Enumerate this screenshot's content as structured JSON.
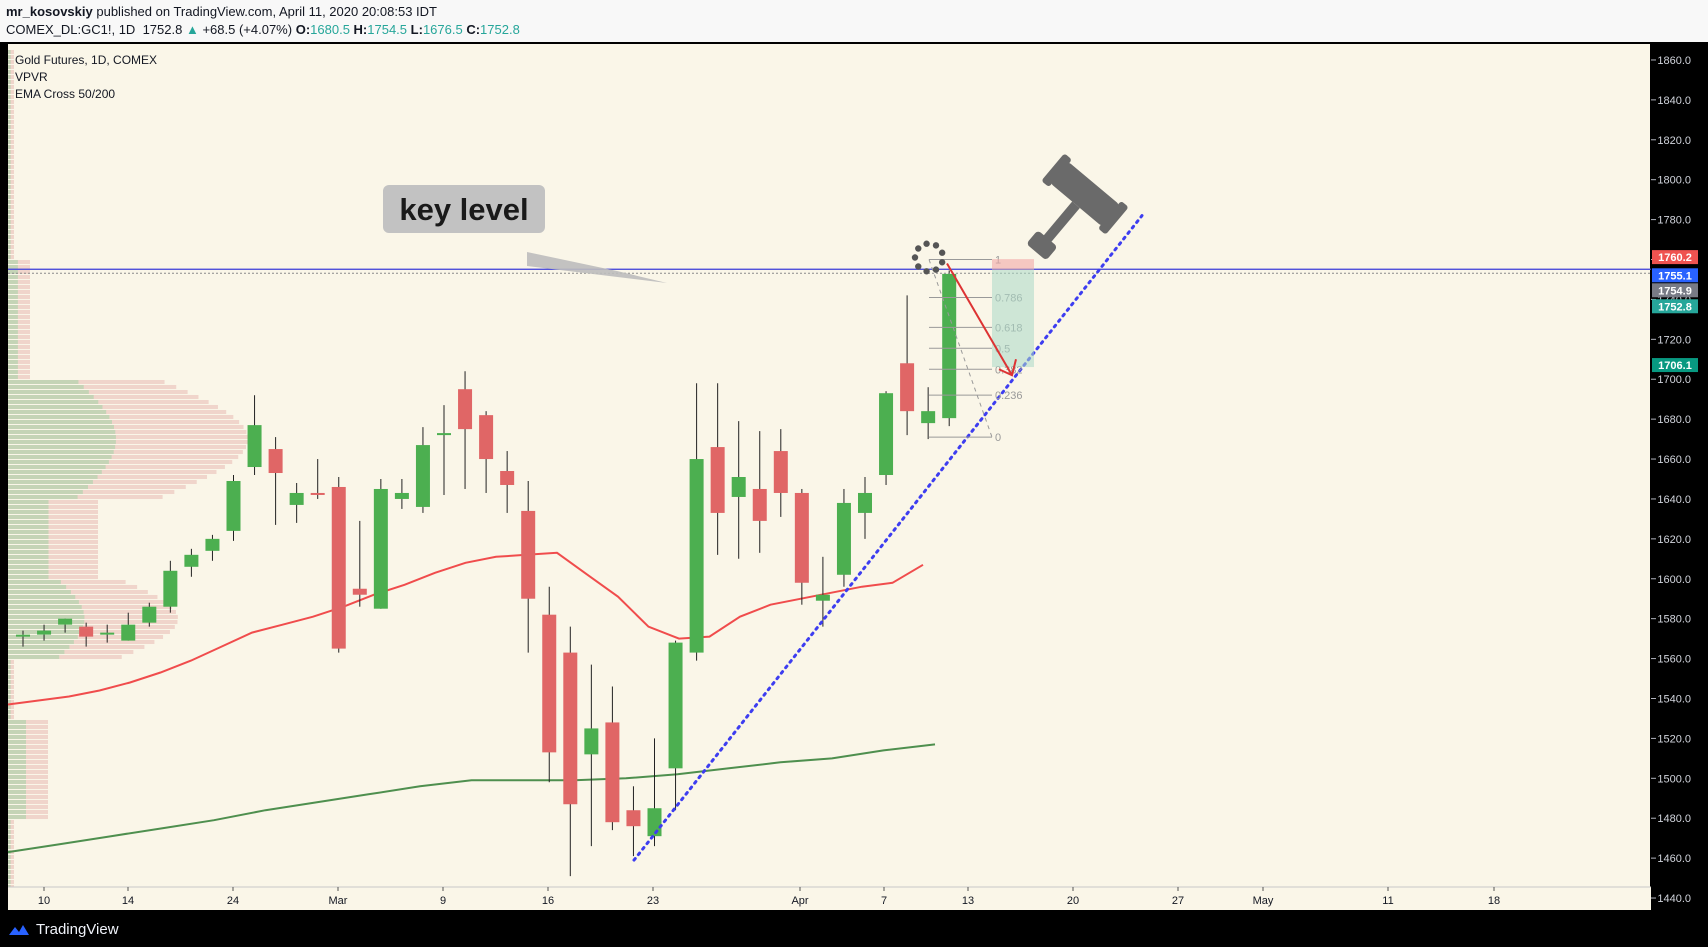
{
  "header": {
    "author": "mr_kosovskiy",
    "published_text": "published on TradingView.com, April 11, 2020 20:08:53 IDT",
    "symbol": "COMEX_DL:GC1!, 1D",
    "last": "1752.8",
    "change": "+68.5 (+4.07%)",
    "ohlc": [
      {
        "label": "O:",
        "value": "1680.5"
      },
      {
        "label": "H:",
        "value": "1754.5"
      },
      {
        "label": "L:",
        "value": "1676.5"
      },
      {
        "label": "C:",
        "value": "1752.8"
      }
    ]
  },
  "legend": {
    "title": "Gold Futures, 1D, COMEX",
    "indicator1": "VPVR",
    "indicator2": "EMA Cross 50/200"
  },
  "annotation": {
    "key_level": "key level"
  },
  "fib_levels": [
    "1",
    "0.786",
    "0.618",
    "0.5",
    "0.382",
    "0.236",
    "0"
  ],
  "price_tags": [
    {
      "value": "1760.2",
      "color": "#ef5350"
    },
    {
      "value": "1755.1",
      "color": "#2962ff"
    },
    {
      "value": "1754.9",
      "color": "#787b86"
    },
    {
      "value": "1752.8",
      "color": "#26a69a"
    },
    {
      "value": "1706.1",
      "color": "#089981"
    }
  ],
  "footer": {
    "brand": "TradingView"
  },
  "colors": {
    "up": "#4caf50",
    "down": "#e06666",
    "background": "#faf6e8",
    "ema50": "#f04c4c",
    "ema200": "#4e8f4e",
    "trendline": "#3d3df0",
    "key_level_line": "#3a3ad8"
  },
  "chart_data": {
    "type": "candlestick",
    "title": "Gold Futures, 1D, COMEX",
    "y_ticks": [
      1440,
      1460,
      1480,
      1500,
      1520,
      1540,
      1560,
      1580,
      1600,
      1620,
      1640,
      1660,
      1680,
      1700,
      1720,
      1740,
      1760,
      1780,
      1800,
      1820,
      1840,
      1860
    ],
    "ylim": [
      1434,
      1868
    ],
    "x_tick_labels": [
      "10",
      "14",
      "24",
      "Mar",
      "9",
      "16",
      "23",
      "Apr",
      "7",
      "13",
      "20",
      "27",
      "May",
      "11",
      "18"
    ],
    "key_level": 1755.1,
    "candles": [
      {
        "o": 1572,
        "h": 1574,
        "l": 1566,
        "c": 1572
      },
      {
        "o": 1572,
        "h": 1577,
        "l": 1569,
        "c": 1574
      },
      {
        "o": 1577,
        "h": 1580,
        "l": 1573,
        "c": 1580
      },
      {
        "o": 1576,
        "h": 1578,
        "l": 1566,
        "c": 1571
      },
      {
        "o": 1572,
        "h": 1577,
        "l": 1568,
        "c": 1573
      },
      {
        "o": 1569,
        "h": 1583,
        "l": 1569,
        "c": 1577
      },
      {
        "o": 1578,
        "h": 1588,
        "l": 1576,
        "c": 1586
      },
      {
        "o": 1586,
        "h": 1609,
        "l": 1583,
        "c": 1604
      },
      {
        "o": 1606,
        "h": 1615,
        "l": 1601,
        "c": 1612
      },
      {
        "o": 1614,
        "h": 1622,
        "l": 1609,
        "c": 1620
      },
      {
        "o": 1624,
        "h": 1652,
        "l": 1619,
        "c": 1649
      },
      {
        "o": 1656,
        "h": 1692,
        "l": 1652,
        "c": 1677
      },
      {
        "o": 1665,
        "h": 1671,
        "l": 1627,
        "c": 1653
      },
      {
        "o": 1637,
        "h": 1648,
        "l": 1628,
        "c": 1643
      },
      {
        "o": 1643,
        "h": 1660,
        "l": 1640,
        "c": 1642
      },
      {
        "o": 1646,
        "h": 1651,
        "l": 1563,
        "c": 1565
      },
      {
        "o": 1595,
        "h": 1629,
        "l": 1586,
        "c": 1592
      },
      {
        "o": 1585,
        "h": 1650,
        "l": 1585,
        "c": 1645
      },
      {
        "o": 1640,
        "h": 1650,
        "l": 1635,
        "c": 1643
      },
      {
        "o": 1636,
        "h": 1676,
        "l": 1633,
        "c": 1667
      },
      {
        "o": 1673,
        "h": 1687,
        "l": 1642,
        "c": 1673
      },
      {
        "o": 1695,
        "h": 1704,
        "l": 1645,
        "c": 1675
      },
      {
        "o": 1682,
        "h": 1684,
        "l": 1643,
        "c": 1660
      },
      {
        "o": 1654,
        "h": 1664,
        "l": 1633,
        "c": 1647
      },
      {
        "o": 1634,
        "h": 1649,
        "l": 1563,
        "c": 1590
      },
      {
        "o": 1582,
        "h": 1596,
        "l": 1498,
        "c": 1513
      },
      {
        "o": 1563,
        "h": 1576,
        "l": 1451,
        "c": 1487
      },
      {
        "o": 1512,
        "h": 1557,
        "l": 1466,
        "c": 1525
      },
      {
        "o": 1528,
        "h": 1546,
        "l": 1474,
        "c": 1478
      },
      {
        "o": 1484,
        "h": 1496,
        "l": 1461,
        "c": 1476
      },
      {
        "o": 1471,
        "h": 1520,
        "l": 1466,
        "c": 1485
      },
      {
        "o": 1505,
        "h": 1569,
        "l": 1484,
        "c": 1568
      },
      {
        "o": 1563,
        "h": 1698,
        "l": 1559,
        "c": 1660
      },
      {
        "o": 1666,
        "h": 1698,
        "l": 1612,
        "c": 1633
      },
      {
        "o": 1641,
        "h": 1679,
        "l": 1610,
        "c": 1651
      },
      {
        "o": 1645,
        "h": 1674,
        "l": 1613,
        "c": 1629
      },
      {
        "o": 1664,
        "h": 1675,
        "l": 1631,
        "c": 1643
      },
      {
        "o": 1643,
        "h": 1645,
        "l": 1587,
        "c": 1598
      },
      {
        "o": 1589,
        "h": 1611,
        "l": 1576,
        "c": 1592
      },
      {
        "o": 1602,
        "h": 1645,
        "l": 1596,
        "c": 1638
      },
      {
        "o": 1633,
        "h": 1651,
        "l": 1620,
        "c": 1643
      },
      {
        "o": 1652,
        "h": 1694,
        "l": 1647,
        "c": 1693
      },
      {
        "o": 1708,
        "h": 1742,
        "l": 1672,
        "c": 1684
      },
      {
        "o": 1678,
        "h": 1696,
        "l": 1670,
        "c": 1684
      },
      {
        "o": 1680.5,
        "h": 1754.5,
        "l": 1676.5,
        "c": 1752.8
      }
    ],
    "ema50": [
      1537,
      1539,
      1541,
      1544,
      1548,
      1553,
      1559,
      1566,
      1573,
      1577,
      1581,
      1586,
      1592,
      1597,
      1603,
      1608,
      1611,
      1612,
      1613,
      1602,
      1591,
      1576,
      1570,
      1571,
      1581,
      1587,
      1590,
      1593,
      1596,
      1598,
      1607
    ],
    "ema200": [
      1463,
      1467,
      1471,
      1475,
      1479,
      1484,
      1488,
      1492,
      1496,
      1499,
      1499,
      1499,
      1500,
      1502,
      1505,
      1508,
      1510,
      1514,
      1517
    ]
  }
}
